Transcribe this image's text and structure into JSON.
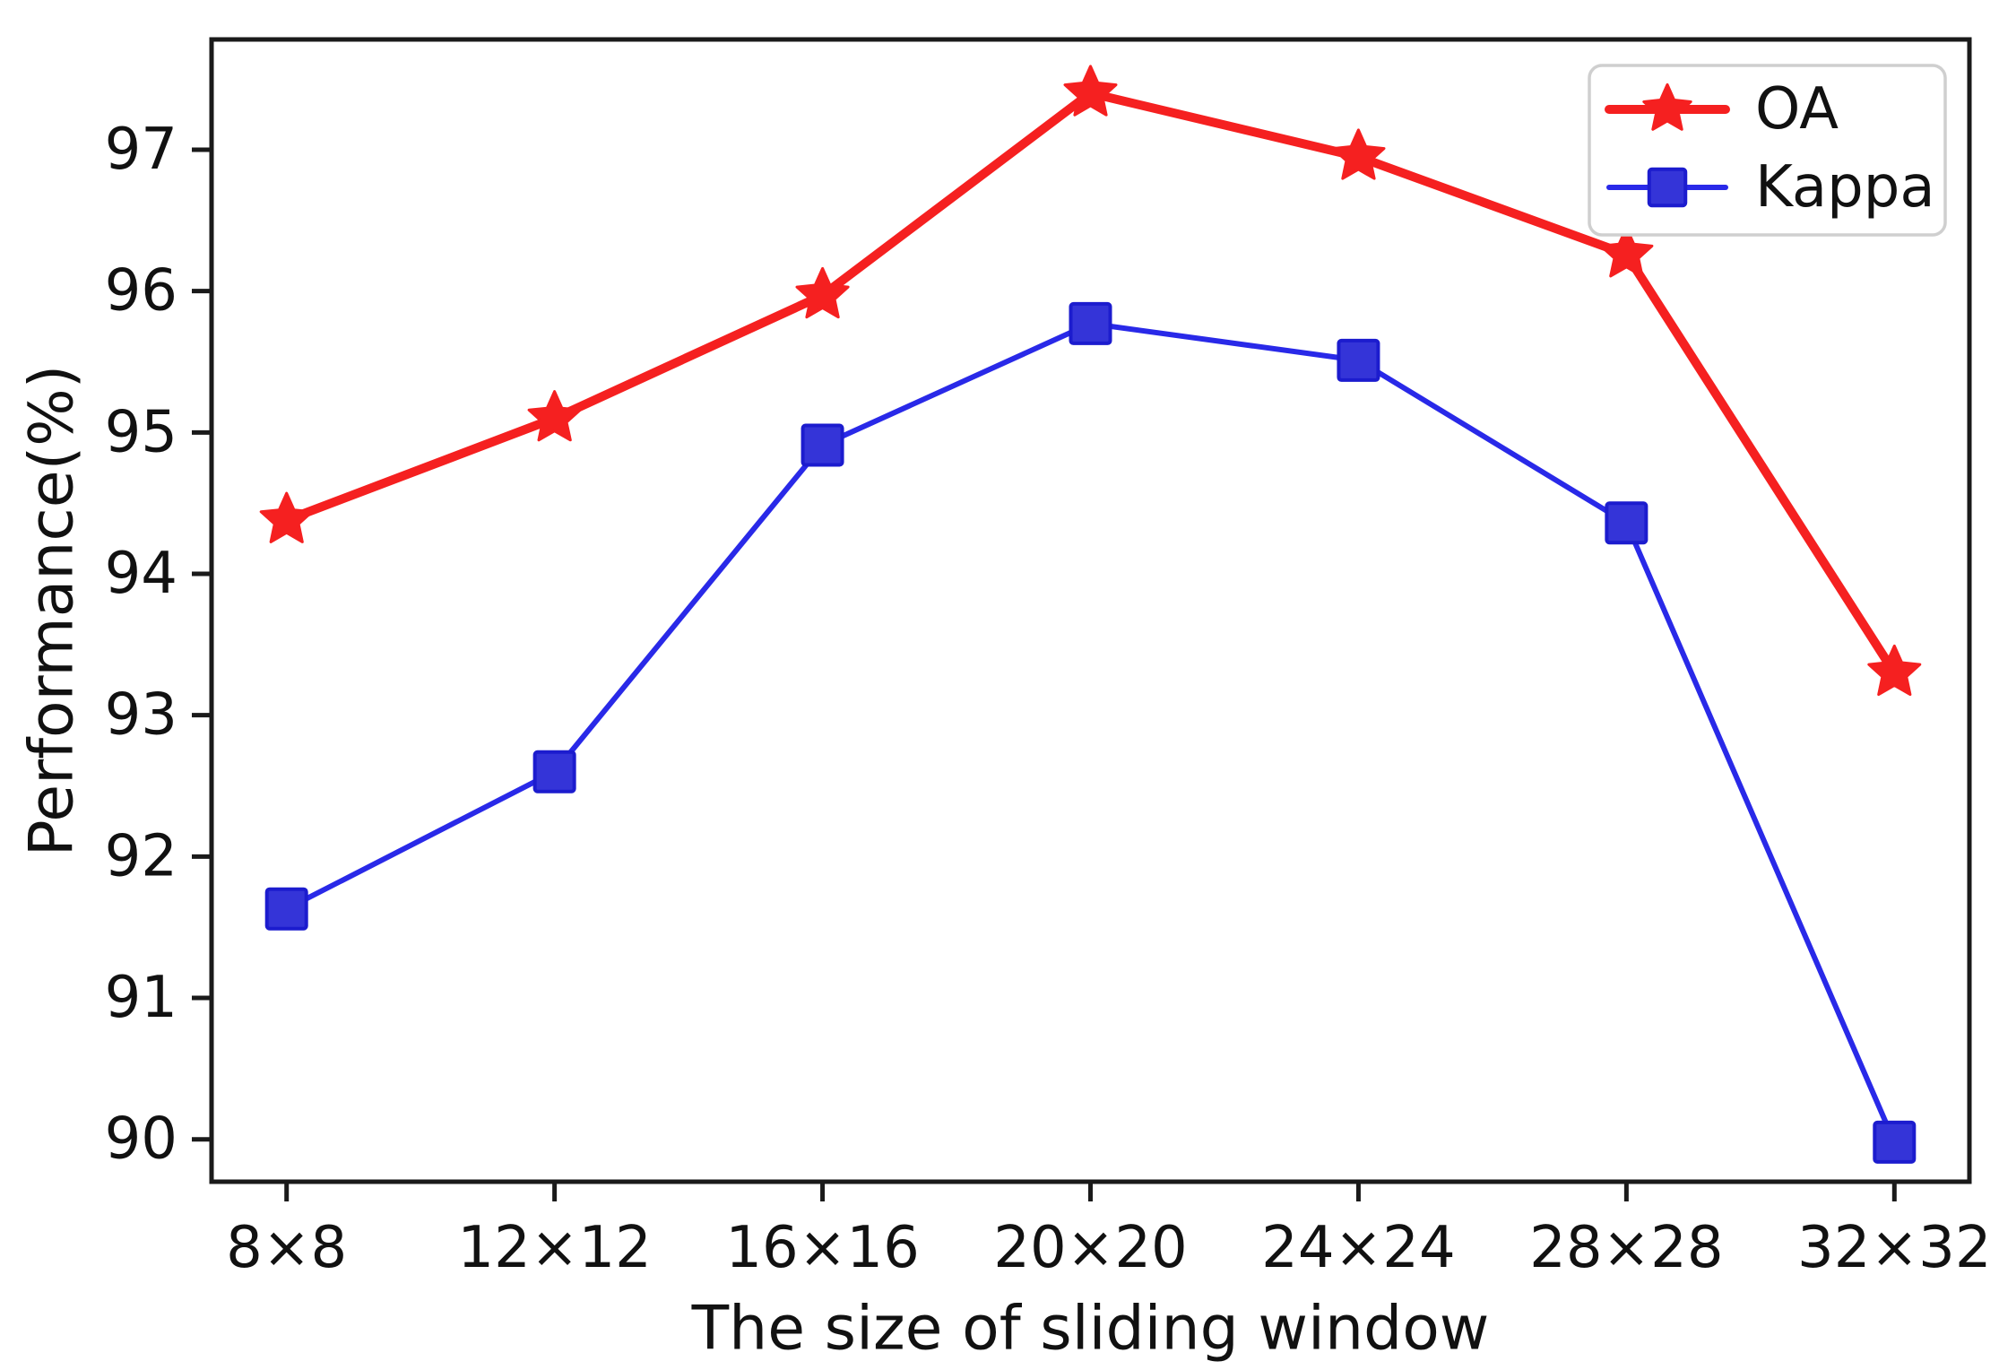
{
  "figure": {
    "background": "#ffffff",
    "text_color": "#111111",
    "axis_color": "#1a1a1a"
  },
  "chart_data": {
    "type": "line",
    "title": "",
    "xlabel": "The size of sliding window",
    "ylabel": "Performance(%)",
    "categories": [
      "8×8",
      "12×12",
      "16×16",
      "20×20",
      "24×24",
      "28×28",
      "32×32"
    ],
    "series": [
      {
        "name": "OA",
        "color": "#f52020",
        "marker": "star",
        "marker_fill": "#f52020",
        "marker_edge": "#f52020",
        "marker_size": 30,
        "line_width": 10,
        "values": [
          94.38,
          95.1,
          95.97,
          97.4,
          96.95,
          96.26,
          93.3
        ]
      },
      {
        "name": "Kappa",
        "color": "#2929e8",
        "marker": "square",
        "marker_fill": "#3434d8",
        "marker_edge": "#1c1cce",
        "marker_size": 22,
        "line_width": 6,
        "values": [
          91.63,
          92.6,
          94.91,
          95.77,
          95.51,
          94.36,
          89.98
        ]
      }
    ],
    "yticks": [
      90,
      91,
      92,
      93,
      94,
      95,
      96,
      97
    ],
    "ylim": [
      89.7,
      97.78
    ],
    "x_margin": 0.28,
    "grid": false,
    "legend": {
      "position": "top-right",
      "border_color": "#cfcfcf",
      "labels": [
        "OA",
        "Kappa"
      ]
    }
  }
}
